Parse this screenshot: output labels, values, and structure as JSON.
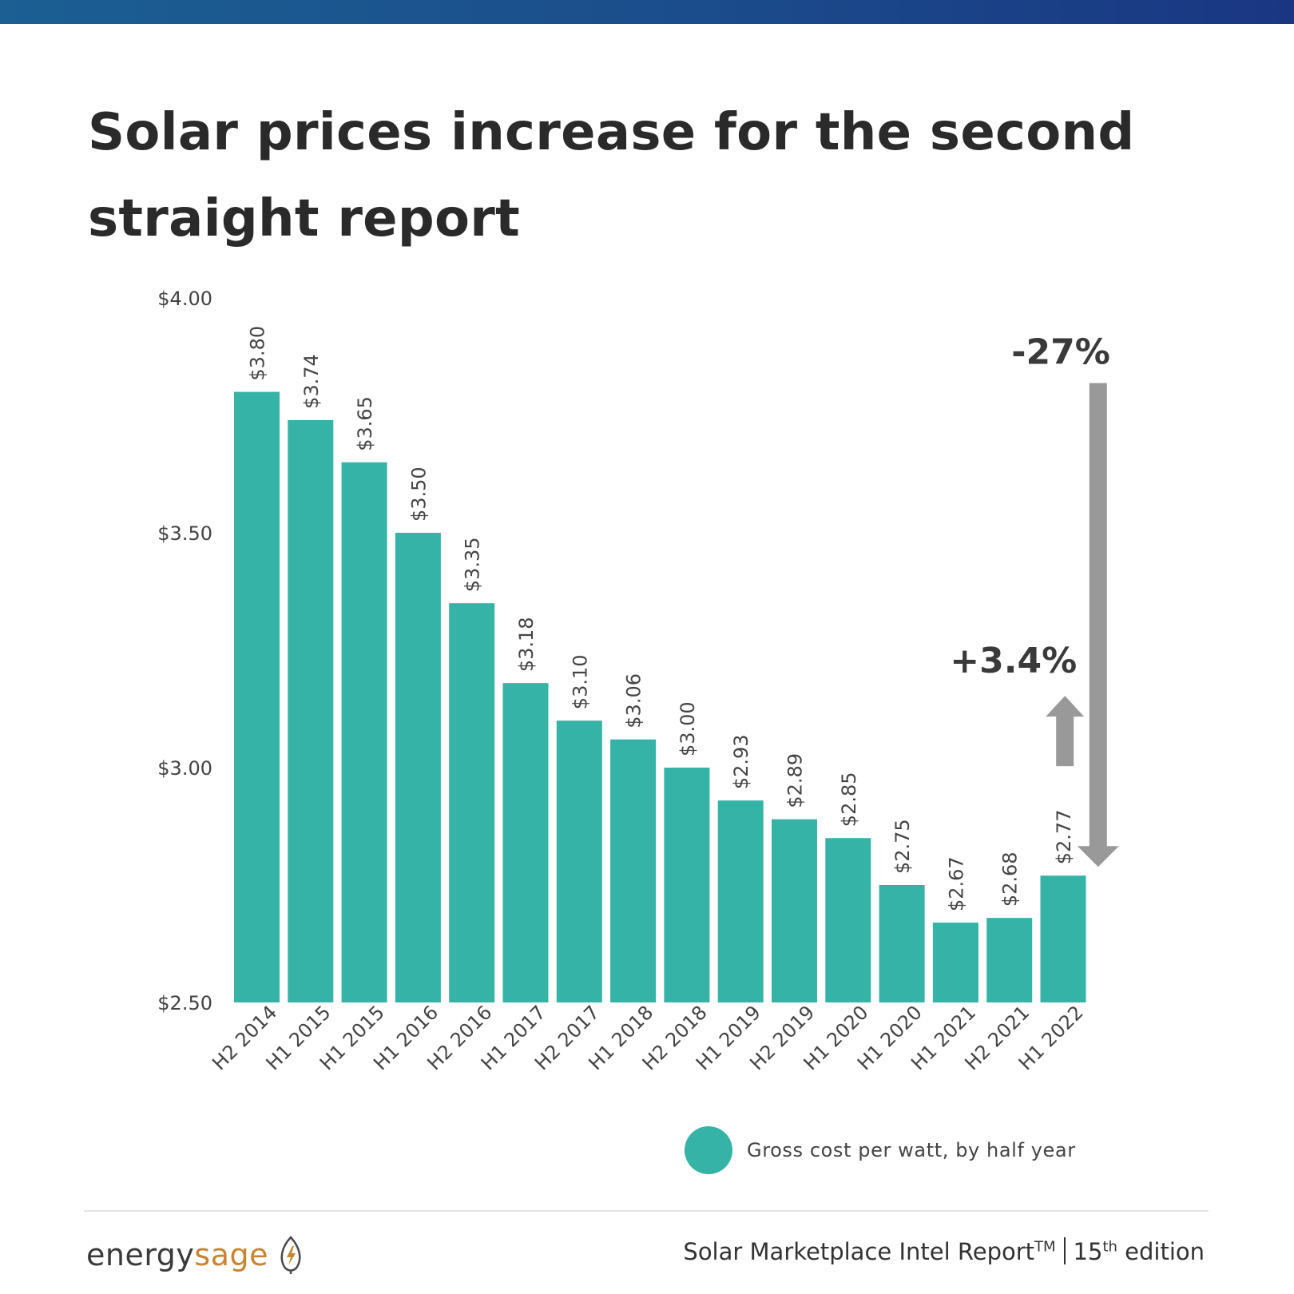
{
  "header": {
    "title": "Solar prices increase for the second straight report"
  },
  "colors": {
    "bar": "#35b3a6",
    "axis_text": "#444444",
    "arrow": "#999999",
    "annotation_text": "#3a3a3a"
  },
  "chart_data": {
    "type": "bar",
    "title": "Solar prices increase for the second straight report",
    "xlabel": "",
    "ylabel": "",
    "ylim": [
      2.5,
      4.0
    ],
    "yticks": [
      2.5,
      3.0,
      3.5,
      4.0
    ],
    "ytick_labels": [
      "$2.50",
      "$3.00",
      "$3.50",
      "$4.00"
    ],
    "grid": false,
    "categories": [
      "H2 2014",
      "H1 2015",
      "H1 2015",
      "H1 2016",
      "H2 2016",
      "H1 2017",
      "H2 2017",
      "H1 2018",
      "H2 2018",
      "H1 2019",
      "H2 2019",
      "H1 2020",
      "H1 2020",
      "H1 2021",
      "H2 2021",
      "H1 2022"
    ],
    "series": [
      {
        "name": "Gross cost per watt, by half year",
        "values": [
          3.8,
          3.74,
          3.65,
          3.5,
          3.35,
          3.18,
          3.1,
          3.06,
          3.0,
          2.93,
          2.89,
          2.85,
          2.75,
          2.67,
          2.68,
          2.77
        ],
        "data_labels": [
          "$3.80",
          "$3.74",
          "$3.65",
          "$3.50",
          "$3.35",
          "$3.18",
          "$3.10",
          "$3.06",
          "$3.00",
          "$2.93",
          "$2.89",
          "$2.85",
          "$2.75",
          "$2.67",
          "$2.68",
          "$2.77"
        ]
      }
    ],
    "annotations": [
      {
        "label": "-27%",
        "kind": "down-arrow",
        "from_value": 3.8,
        "to_value": 2.77
      },
      {
        "label": "+3.4%",
        "kind": "up-arrow",
        "from_value": 2.68,
        "to_value": 2.77
      }
    ],
    "legend": {
      "position": "bottom-right",
      "label": "Gross cost per watt, by half year"
    }
  },
  "footer": {
    "brand_part1": "energy",
    "brand_part2": "sage",
    "report_name": "Solar Marketplace Intel Report",
    "trademark": "TM",
    "edition_number": "15",
    "edition_suffix": "th",
    "edition_word": " edition"
  }
}
